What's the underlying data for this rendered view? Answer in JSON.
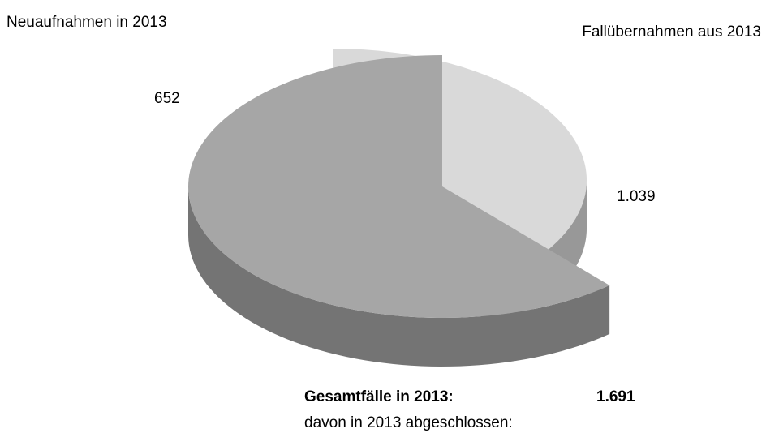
{
  "chart_data": {
    "type": "pie3d",
    "categories": [
      "Neuaufnahmen in 2013",
      "Fallübernahmen aus 2013"
    ],
    "values": [
      652,
      1039
    ],
    "value_labels": [
      "652",
      "1.039"
    ],
    "colors": [
      "#d9d9d9",
      "#a6a6a6"
    ],
    "annotations": [
      "Gesamtfälle in 2013:",
      "1.691",
      "davon in 2013 abgeschlossen:"
    ]
  }
}
